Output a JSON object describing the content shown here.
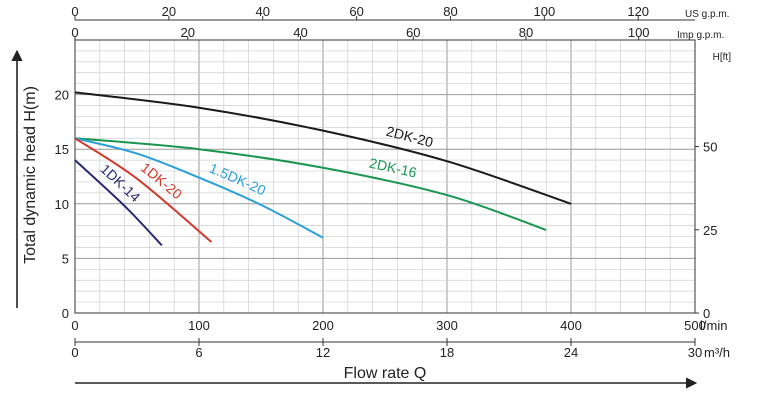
{
  "chart_data": {
    "type": "line",
    "xlabel": "Flow rate Q",
    "ylabel": "Total dynamic head H(m)",
    "xlim": [
      0,
      500
    ],
    "ylim": [
      0,
      25
    ],
    "grid": true,
    "x_ticks_lmin": {
      "values": [
        0,
        100,
        200,
        300,
        400,
        500
      ],
      "labels": [
        "0",
        "100",
        "200",
        "300",
        "400",
        "500"
      ],
      "unit": "l/min"
    },
    "x_ticks_m3h": {
      "values": [
        0,
        6,
        12,
        18,
        24,
        30
      ],
      "labels": [
        "0",
        "6",
        "12",
        "18",
        "24",
        "30"
      ],
      "unit": "m³/h"
    },
    "x_ticks_usgpm": {
      "values": [
        0,
        20,
        40,
        60,
        80,
        100,
        120
      ],
      "labels": [
        "0",
        "20",
        "40",
        "60",
        "80",
        "100",
        "120"
      ],
      "unit": "US g.p.m."
    },
    "x_ticks_impgpm": {
      "values": [
        0,
        20,
        40,
        60,
        80,
        100
      ],
      "labels": [
        "0",
        "20",
        "40",
        "60",
        "80",
        "100"
      ],
      "unit": "Imp g.p.m."
    },
    "y_ticks_m": {
      "values": [
        0,
        5,
        10,
        15,
        20
      ],
      "labels": [
        "0",
        "5",
        "10",
        "15",
        "20"
      ]
    },
    "y_ticks_ft": {
      "values": [
        0,
        25,
        50
      ],
      "labels": [
        "0",
        "25",
        "50"
      ],
      "unit": "H[ft]"
    },
    "series": [
      {
        "name": "2DK-20",
        "color": "#1a1a1a",
        "x": [
          0,
          100,
          200,
          300,
          400
        ],
        "y": [
          20.2,
          18.8,
          16.7,
          13.9,
          10.0
        ]
      },
      {
        "name": "2DK-16",
        "color": "#1a9650",
        "x": [
          0,
          100,
          200,
          300,
          380
        ],
        "y": [
          16.0,
          15.0,
          13.3,
          10.8,
          7.6
        ]
      },
      {
        "name": "1.5DK-20",
        "color": "#2aa0d8",
        "x": [
          0,
          50,
          100,
          150,
          200
        ],
        "y": [
          16.0,
          14.6,
          12.4,
          9.9,
          6.9
        ]
      },
      {
        "name": "1DK-20",
        "color": "#d03a2c",
        "x": [
          0,
          50,
          110
        ],
        "y": [
          16.0,
          12.3,
          6.5
        ]
      },
      {
        "name": "1DK-14",
        "color": "#2a2a72",
        "x": [
          0,
          40,
          70
        ],
        "y": [
          14.0,
          9.8,
          6.2
        ]
      }
    ]
  }
}
